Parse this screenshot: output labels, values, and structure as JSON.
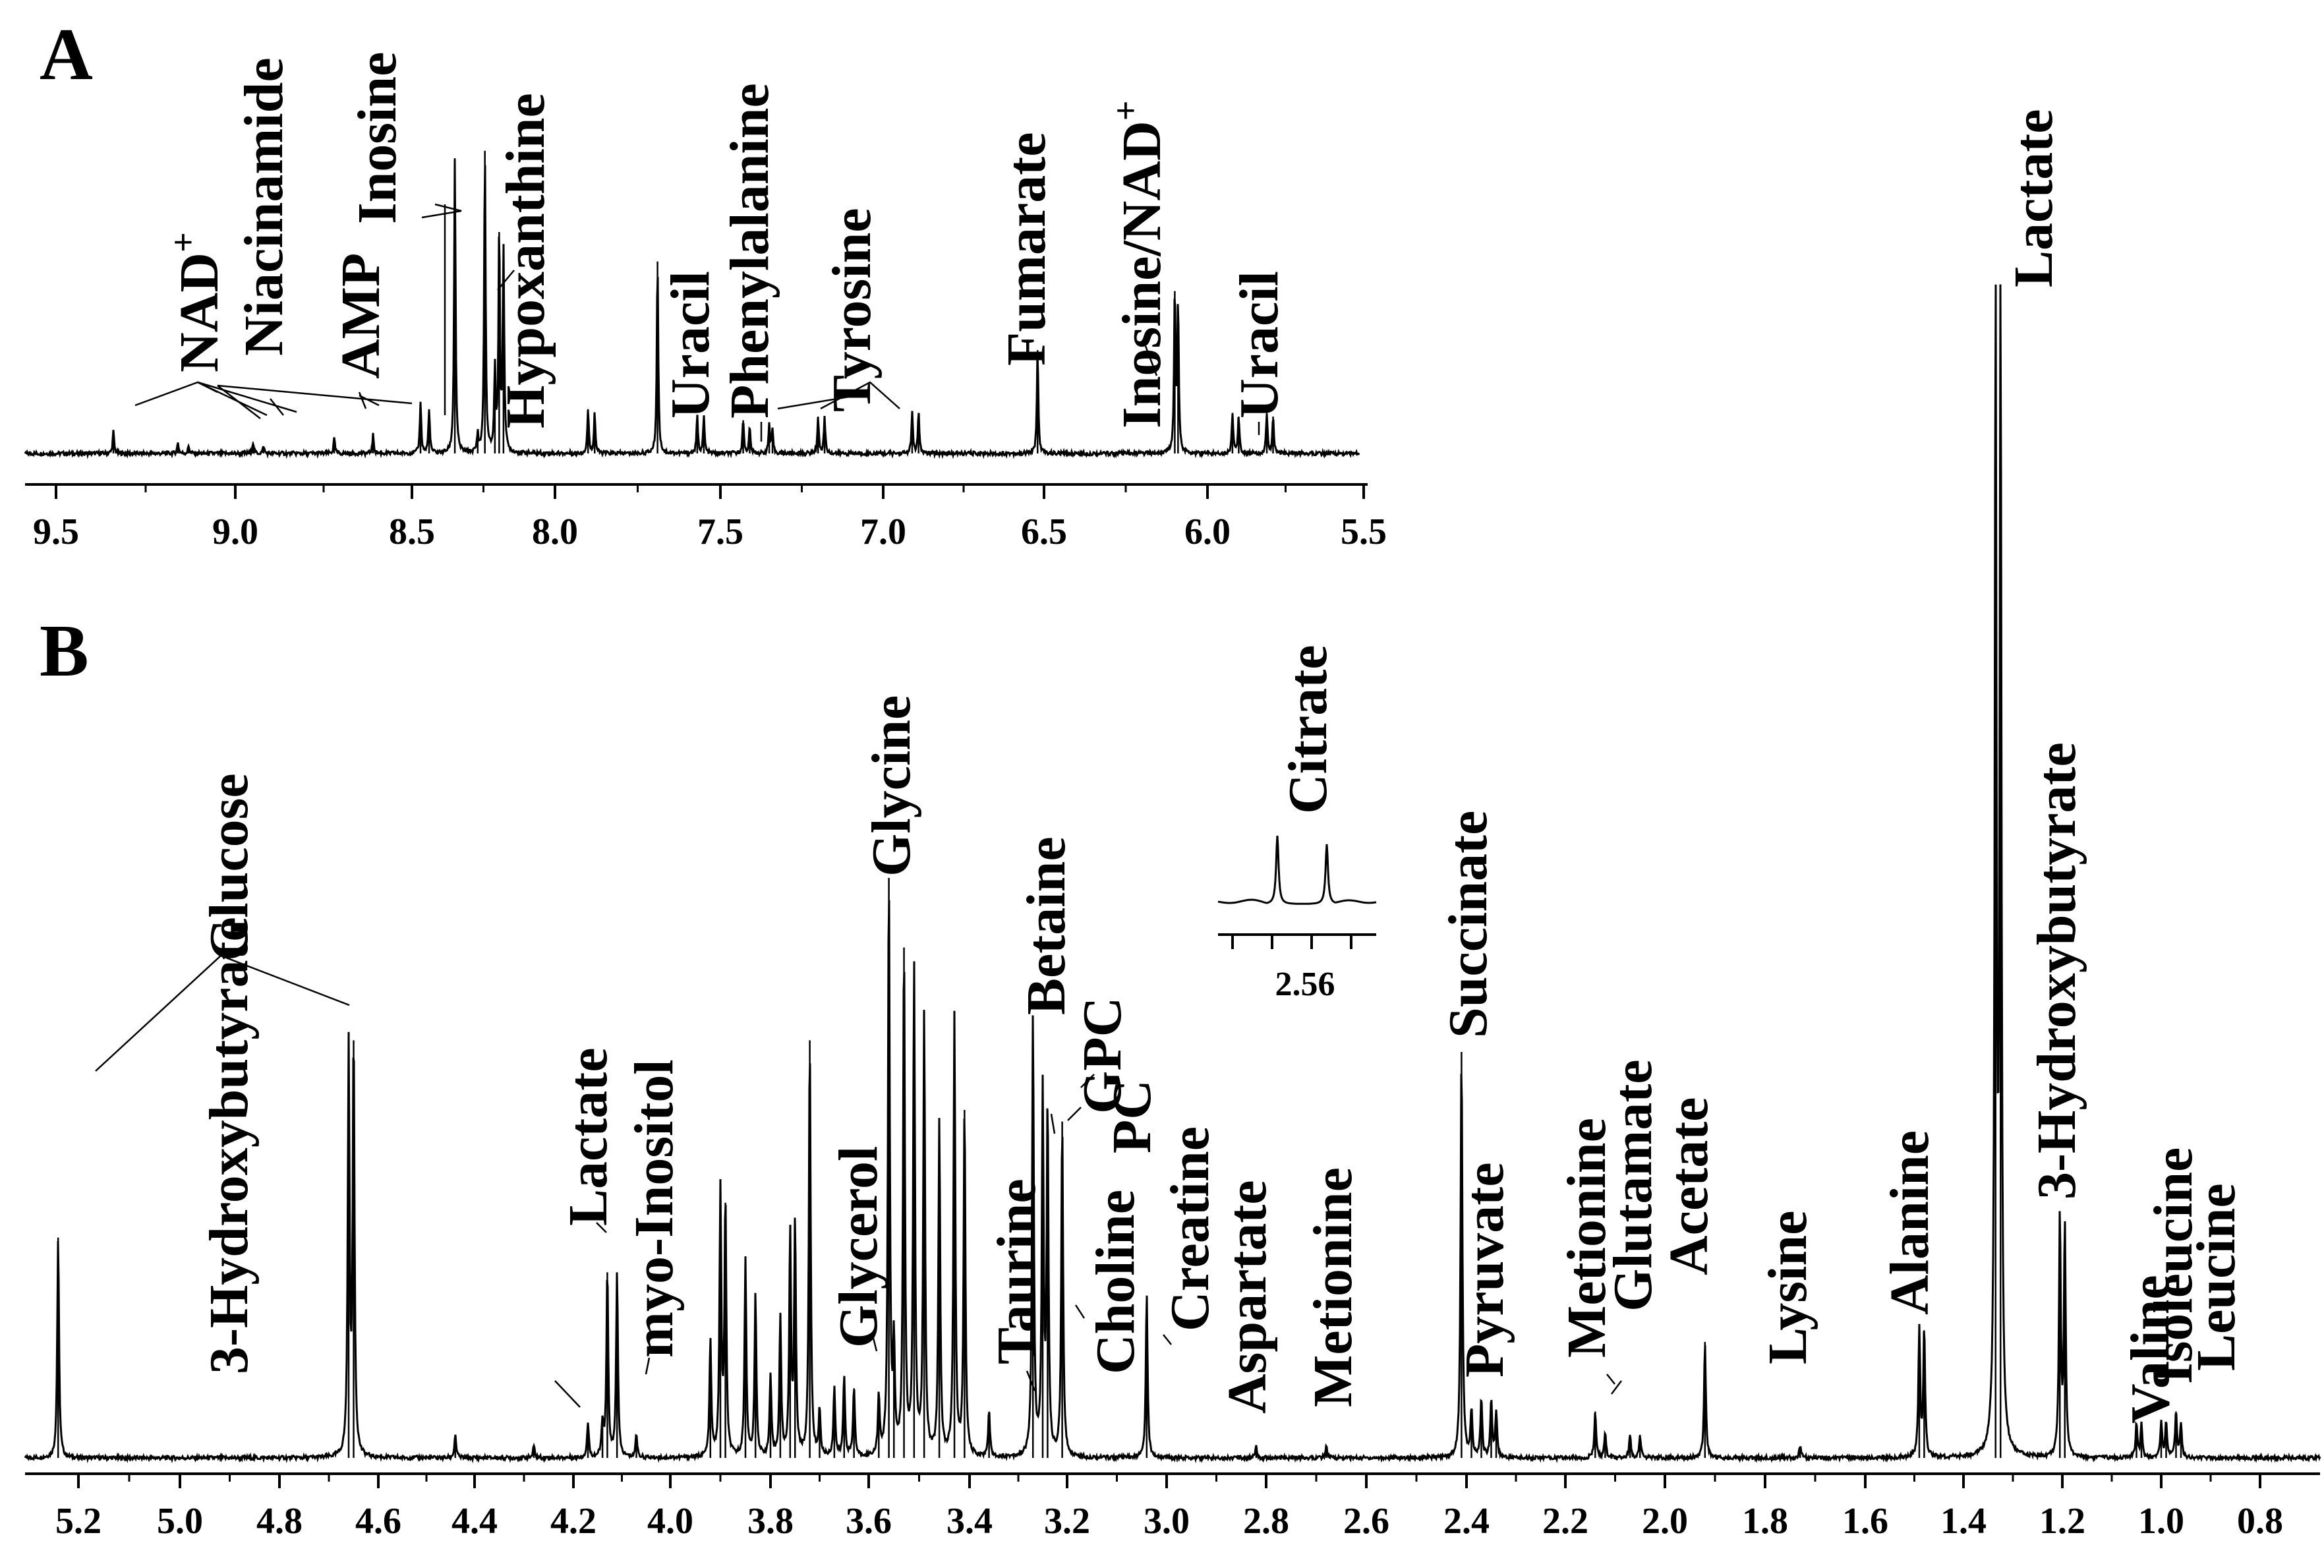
{
  "chart_data": [
    {
      "panel": "A",
      "type": "line",
      "title": "",
      "xlabel": "",
      "ylabel": "",
      "xlim": [
        9.65,
        5.45
      ],
      "x_ticks": [
        "9.5",
        "9.0",
        "8.5",
        "8.0",
        "7.5",
        "7.0",
        "6.5",
        "6.0",
        "5.5"
      ],
      "grid": false,
      "peaks": [
        {
          "ppm": 9.34,
          "h": 0.06
        },
        {
          "ppm": 9.16,
          "h": 0.03
        },
        {
          "ppm": 9.13,
          "h": 0.02
        },
        {
          "ppm": 8.95,
          "h": 0.03
        },
        {
          "ppm": 8.92,
          "h": 0.02
        },
        {
          "ppm": 8.72,
          "h": 0.04
        },
        {
          "ppm": 8.61,
          "h": 0.05
        },
        {
          "ppm": 8.47,
          "h": 0.14
        },
        {
          "ppm": 8.44,
          "h": 0.12
        },
        {
          "ppm": 8.35,
          "h": 0.8
        },
        {
          "ppm": 8.27,
          "h": 0.05
        },
        {
          "ppm": 8.245,
          "h": 0.82
        },
        {
          "ppm": 8.21,
          "h": 0.22
        },
        {
          "ppm": 8.195,
          "h": 0.6
        },
        {
          "ppm": 8.18,
          "h": 0.55
        },
        {
          "ppm": 7.9,
          "h": 0.12
        },
        {
          "ppm": 7.88,
          "h": 0.11
        },
        {
          "ppm": 7.69,
          "h": 0.52
        },
        {
          "ppm": 7.57,
          "h": 0.1
        },
        {
          "ppm": 7.55,
          "h": 0.1
        },
        {
          "ppm": 7.43,
          "h": 0.09
        },
        {
          "ppm": 7.41,
          "h": 0.07
        },
        {
          "ppm": 7.35,
          "h": 0.08
        },
        {
          "ppm": 7.34,
          "h": 0.06
        },
        {
          "ppm": 7.2,
          "h": 0.1
        },
        {
          "ppm": 7.18,
          "h": 0.1
        },
        {
          "ppm": 6.91,
          "h": 0.11
        },
        {
          "ppm": 6.89,
          "h": 0.11
        },
        {
          "ppm": 6.52,
          "h": 0.28
        },
        {
          "ppm": 6.1,
          "h": 0.44
        },
        {
          "ppm": 6.09,
          "h": 0.4
        },
        {
          "ppm": 5.92,
          "h": 0.11
        },
        {
          "ppm": 5.9,
          "h": 0.1
        },
        {
          "ppm": 5.81,
          "h": 0.11
        },
        {
          "ppm": 5.79,
          "h": 0.1
        }
      ],
      "annotations": [
        {
          "text": "NAD",
          "sup": "+"
        },
        {
          "text": "Niacinamide"
        },
        {
          "text": "AMP"
        },
        {
          "text": "Inosine"
        },
        {
          "text": "Hypoxanthine"
        },
        {
          "text": "Uracil"
        },
        {
          "text": "Phenylalanine"
        },
        {
          "text": "Tyrosine"
        },
        {
          "text": "Fumarate"
        },
        {
          "text": "Inosine/NAD",
          "sup": "+"
        },
        {
          "text": "Uracil"
        }
      ]
    },
    {
      "panel": "B",
      "type": "line",
      "title": "",
      "xlabel": "",
      "ylabel": "",
      "xlim": [
        5.32,
        0.68
      ],
      "x_ticks": [
        "5.2",
        "5.0",
        "4.8",
        "4.6",
        "4.4",
        "4.2",
        "4.0",
        "3.8",
        "3.6",
        "3.4",
        "3.2",
        "3.0",
        "2.8",
        "2.6",
        "2.4",
        "2.2",
        "2.0",
        "1.8",
        "1.6",
        "1.4",
        "1.2",
        "1.0",
        "0.8"
      ],
      "grid": false,
      "peaks": [
        {
          "ppm": 5.24,
          "h": 0.19
        },
        {
          "ppm": 4.66,
          "h": 0.35
        },
        {
          "ppm": 4.65,
          "h": 0.36
        },
        {
          "ppm": 4.44,
          "h": 0.02
        },
        {
          "ppm": 4.28,
          "h": 0.01
        },
        {
          "ppm": 4.17,
          "h": 0.03
        },
        {
          "ppm": 4.14,
          "h": 0.03
        },
        {
          "ppm": 4.13,
          "h": 0.16
        },
        {
          "ppm": 4.11,
          "h": 0.16
        },
        {
          "ppm": 4.07,
          "h": 0.02
        },
        {
          "ppm": 3.92,
          "h": 0.1
        },
        {
          "ppm": 3.9,
          "h": 0.23
        },
        {
          "ppm": 3.89,
          "h": 0.22
        },
        {
          "ppm": 3.85,
          "h": 0.17
        },
        {
          "ppm": 3.83,
          "h": 0.14
        },
        {
          "ppm": 3.8,
          "h": 0.07
        },
        {
          "ppm": 3.78,
          "h": 0.12
        },
        {
          "ppm": 3.76,
          "h": 0.19
        },
        {
          "ppm": 3.75,
          "h": 0.2
        },
        {
          "ppm": 3.72,
          "h": 0.36
        },
        {
          "ppm": 3.7,
          "h": 0.04
        },
        {
          "ppm": 3.67,
          "h": 0.06
        },
        {
          "ppm": 3.65,
          "h": 0.07
        },
        {
          "ppm": 3.63,
          "h": 0.06
        },
        {
          "ppm": 3.58,
          "h": 0.05
        },
        {
          "ppm": 3.56,
          "h": 0.5
        },
        {
          "ppm": 3.55,
          "h": 0.09
        },
        {
          "ppm": 3.53,
          "h": 0.44
        },
        {
          "ppm": 3.51,
          "h": 0.42
        },
        {
          "ppm": 3.49,
          "h": 0.38
        },
        {
          "ppm": 3.46,
          "h": 0.29
        },
        {
          "ppm": 3.43,
          "h": 0.38
        },
        {
          "ppm": 3.41,
          "h": 0.3
        },
        {
          "ppm": 3.36,
          "h": 0.04
        },
        {
          "ppm": 3.27,
          "h": 0.38
        },
        {
          "ppm": 3.25,
          "h": 0.31
        },
        {
          "ppm": 3.24,
          "h": 0.3
        },
        {
          "ppm": 3.21,
          "h": 0.29
        },
        {
          "ppm": 3.04,
          "h": 0.14
        },
        {
          "ppm": 2.82,
          "h": 0.01
        },
        {
          "ppm": 2.68,
          "h": 0.01
        },
        {
          "ppm": 2.41,
          "h": 0.35
        },
        {
          "ppm": 2.39,
          "h": 0.04
        },
        {
          "ppm": 2.37,
          "h": 0.05
        },
        {
          "ppm": 2.35,
          "h": 0.05
        },
        {
          "ppm": 2.34,
          "h": 0.04
        },
        {
          "ppm": 2.14,
          "h": 0.04
        },
        {
          "ppm": 2.12,
          "h": 0.02
        },
        {
          "ppm": 2.07,
          "h": 0.02
        },
        {
          "ppm": 2.05,
          "h": 0.02
        },
        {
          "ppm": 1.92,
          "h": 0.1
        },
        {
          "ppm": 1.73,
          "h": 0.01
        },
        {
          "ppm": 1.49,
          "h": 0.11
        },
        {
          "ppm": 1.48,
          "h": 0.11
        },
        {
          "ppm": 1.335,
          "h": 0.99
        },
        {
          "ppm": 1.325,
          "h": 0.99
        },
        {
          "ppm": 1.205,
          "h": 0.21
        },
        {
          "ppm": 1.195,
          "h": 0.2
        },
        {
          "ppm": 1.05,
          "h": 0.03
        },
        {
          "ppm": 1.04,
          "h": 0.03
        },
        {
          "ppm": 1.0,
          "h": 0.03
        },
        {
          "ppm": 0.99,
          "h": 0.03
        },
        {
          "ppm": 0.97,
          "h": 0.04
        },
        {
          "ppm": 0.96,
          "h": 0.03
        }
      ],
      "annotations": [
        {
          "text": "Glucose"
        },
        {
          "text": "3-Hydroxybutyrate"
        },
        {
          "text": "Lactate"
        },
        {
          "text": "myo-Inositol"
        },
        {
          "text": "Glycerol"
        },
        {
          "text": "Glycine"
        },
        {
          "text": "Taurine"
        },
        {
          "text": "Betaine"
        },
        {
          "text": "GPC"
        },
        {
          "text": "PC"
        },
        {
          "text": "Choline"
        },
        {
          "text": "Creatine"
        },
        {
          "text": "Aspartate"
        },
        {
          "text": "Metionine"
        },
        {
          "text": "Succinate"
        },
        {
          "text": "Pyruvate"
        },
        {
          "text": "Metionine"
        },
        {
          "text": "Glutamate"
        },
        {
          "text": "Acetate"
        },
        {
          "text": "Lysine"
        },
        {
          "text": "Alanine"
        },
        {
          "text": "Lactate"
        },
        {
          "text": "3-Hydroxybutyrate"
        },
        {
          "text": "Valine"
        },
        {
          "text": "Isoleucine"
        },
        {
          "text": "Leucine"
        }
      ],
      "inset": {
        "label": "Citrate",
        "x_tick": "2.56",
        "peaks": [
          {
            "ppm": 2.58,
            "h": 0.8
          },
          {
            "ppm": 2.54,
            "h": 0.7
          }
        ]
      }
    }
  ],
  "labels": {
    "panelA": "A",
    "panelB": "B"
  }
}
